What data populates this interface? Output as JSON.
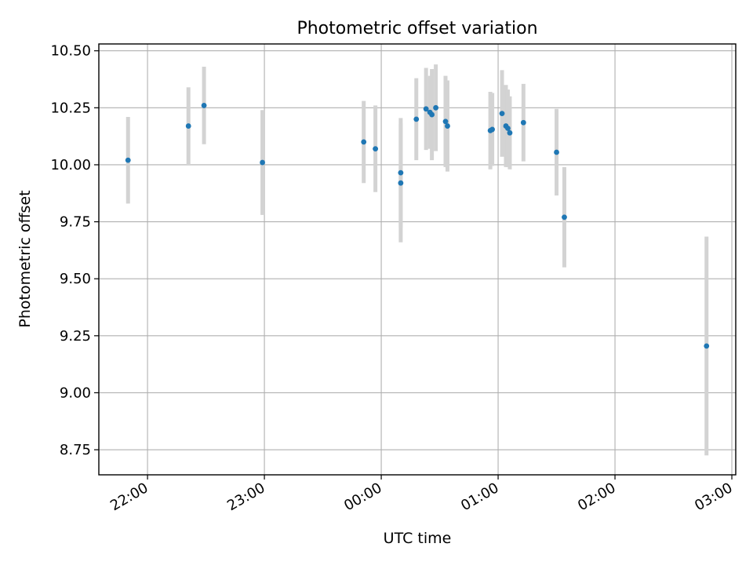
{
  "chart_data": {
    "type": "scatter",
    "title": "Photometric offset variation",
    "xlabel": "UTC time",
    "ylabel": "Photometric offset",
    "xlim": [
      "21:35",
      "03:02"
    ],
    "ylim": [
      8.64,
      10.53
    ],
    "x_ticks": [
      "22:00",
      "23:00",
      "00:00",
      "01:00",
      "02:00",
      "03:00"
    ],
    "y_ticks": [
      "8.75",
      "9.00",
      "9.25",
      "9.50",
      "9.75",
      "10.00",
      "10.25",
      "10.50"
    ],
    "grid": true,
    "colors": {
      "points": "#1f77b4",
      "errorbars": "#d3d3d3",
      "grid": "#b0b0b0"
    },
    "points": [
      {
        "x": "21:50",
        "y": 10.02,
        "yerr": 0.19
      },
      {
        "x": "22:21",
        "y": 10.17,
        "yerr": 0.17
      },
      {
        "x": "22:29",
        "y": 10.26,
        "yerr": 0.17
      },
      {
        "x": "22:59",
        "y": 10.01,
        "yerr": 0.23
      },
      {
        "x": "23:51",
        "y": 10.1,
        "yerr": 0.18
      },
      {
        "x": "23:57",
        "y": 10.07,
        "yerr": 0.19
      },
      {
        "x": "00:10",
        "y": 9.965,
        "yerr": 0.24
      },
      {
        "x": "00:10",
        "y": 9.92,
        "yerr": 0.26
      },
      {
        "x": "00:18",
        "y": 10.2,
        "yerr": 0.18
      },
      {
        "x": "00:23",
        "y": 10.245,
        "yerr": 0.18
      },
      {
        "x": "00:25",
        "y": 10.23,
        "yerr": 0.16
      },
      {
        "x": "00:26",
        "y": 10.22,
        "yerr": 0.2
      },
      {
        "x": "00:28",
        "y": 10.25,
        "yerr": 0.19
      },
      {
        "x": "00:33",
        "y": 10.19,
        "yerr": 0.2
      },
      {
        "x": "00:34",
        "y": 10.17,
        "yerr": 0.2
      },
      {
        "x": "00:56",
        "y": 10.15,
        "yerr": 0.17
      },
      {
        "x": "00:57",
        "y": 10.155,
        "yerr": 0.16
      },
      {
        "x": "01:02",
        "y": 10.225,
        "yerr": 0.19
      },
      {
        "x": "01:04",
        "y": 10.17,
        "yerr": 0.18
      },
      {
        "x": "01:05",
        "y": 10.16,
        "yerr": 0.17
      },
      {
        "x": "01:06",
        "y": 10.14,
        "yerr": 0.16
      },
      {
        "x": "01:13",
        "y": 10.185,
        "yerr": 0.17
      },
      {
        "x": "01:30",
        "y": 10.055,
        "yerr": 0.19
      },
      {
        "x": "01:34",
        "y": 9.77,
        "yerr": 0.22
      },
      {
        "x": "02:47",
        "y": 9.205,
        "yerr": 0.48
      }
    ]
  }
}
